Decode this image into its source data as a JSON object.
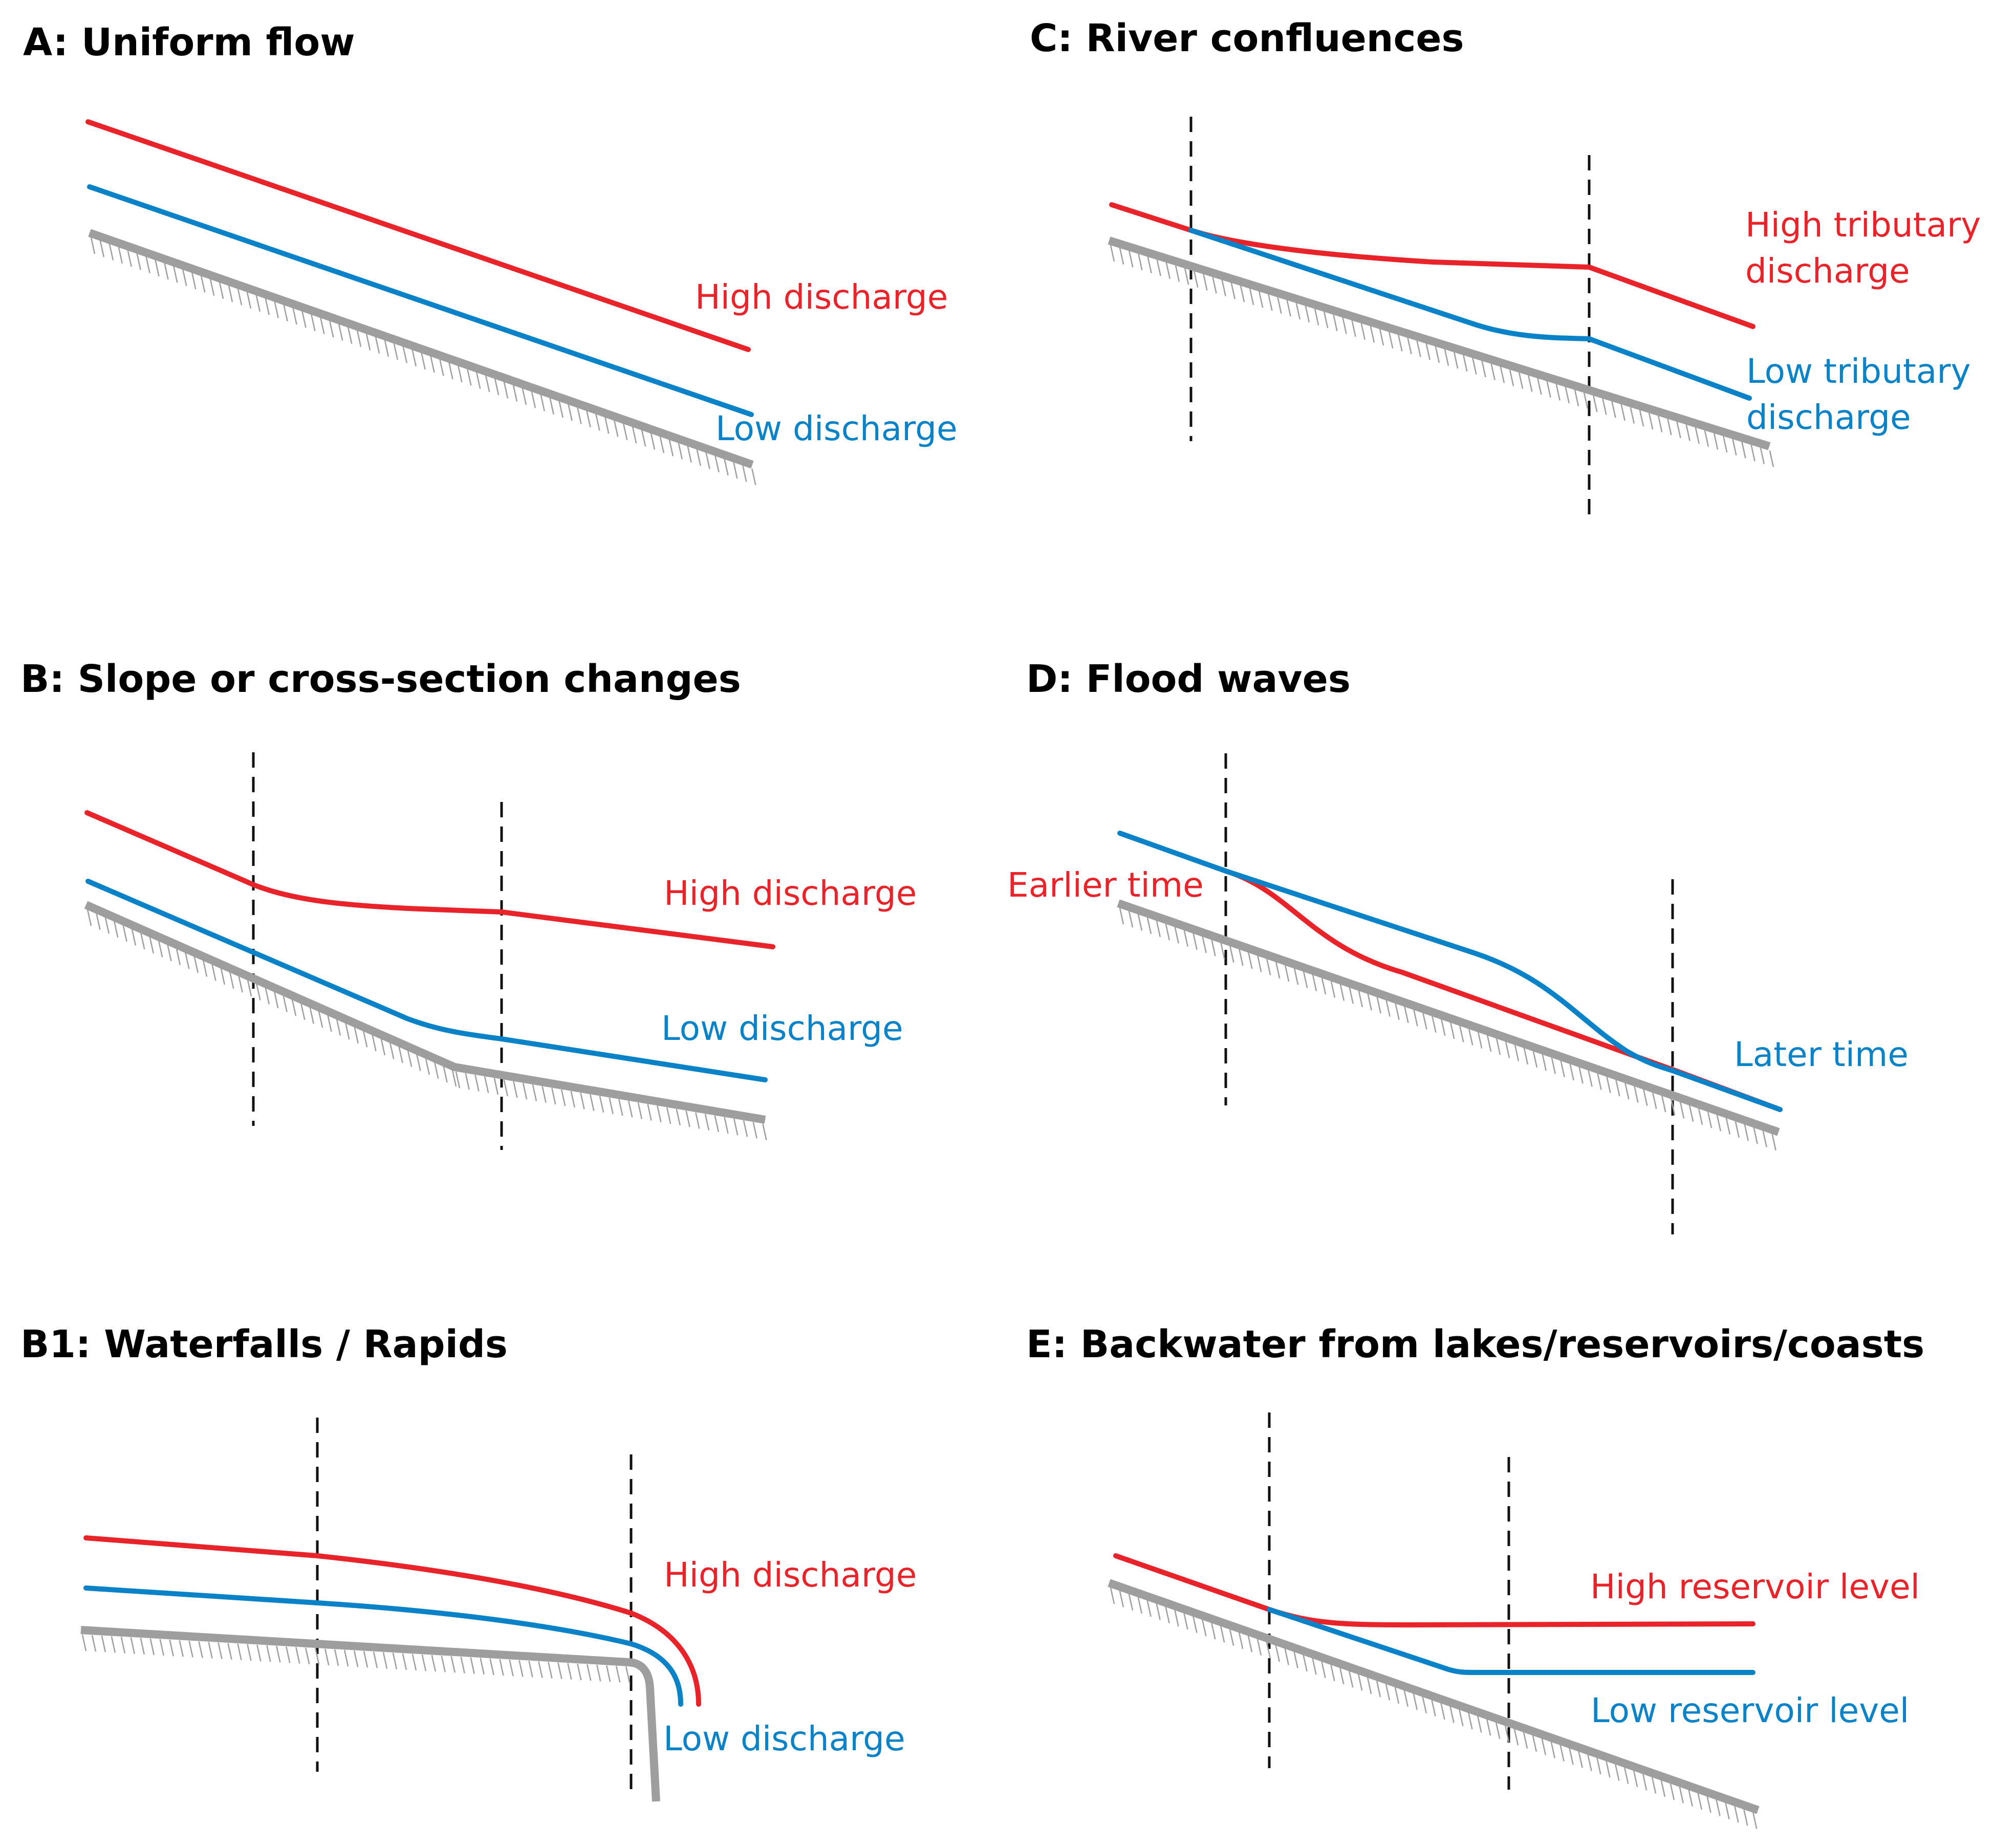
{
  "colors": {
    "high": "#e8232a",
    "low": "#0a82c8",
    "bed": "#9e9e9e",
    "guide": "#111111"
  },
  "panels": {
    "A": {
      "title": "A: Uniform flow",
      "high_label": "High discharge",
      "low_label": "Low discharge"
    },
    "B": {
      "title": "B: Slope or cross-section changes",
      "high_label": "High discharge",
      "low_label": "Low discharge"
    },
    "B1": {
      "title": "B1: Waterfalls / Rapids",
      "high_label": "High discharge",
      "low_label": "Low discharge"
    },
    "C": {
      "title": "C: River confluences",
      "high_label_line1": "High tributary",
      "high_label_line2": "discharge",
      "low_label_line1": "Low tributary",
      "low_label_line2": "discharge"
    },
    "D": {
      "title": "D: Flood waves",
      "early_label": "Earlier time",
      "late_label": "Later time"
    },
    "E": {
      "title": "E: Backwater from lakes/reservoirs/coasts",
      "high_label": "High reservoir level",
      "low_label": "Low reservoir level"
    }
  }
}
